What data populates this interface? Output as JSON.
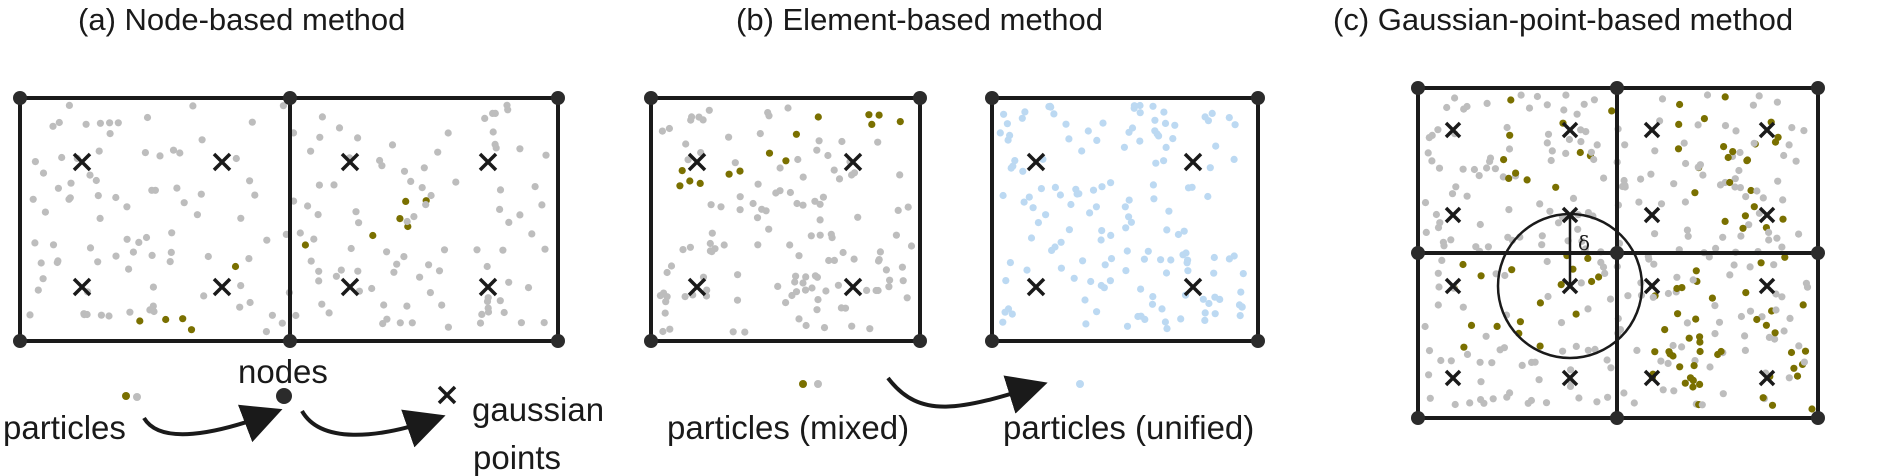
{
  "panels": {
    "a": {
      "title": "(a) Node-based method"
    },
    "b": {
      "title": "(b) Element-based method"
    },
    "c": {
      "title": "(c) Gaussian-point-based method"
    }
  },
  "labels": {
    "particles": "particles",
    "nodes": "nodes",
    "gaussian": "gaussian",
    "points": "points",
    "particles_mixed": "particles (mixed)",
    "particles_unified": "particles (unified)",
    "delta": "δ"
  },
  "colors": {
    "grey_particle": "#bdbdbd",
    "olive_particle": "#7a7000",
    "blue_particle": "#bcd9f2",
    "line": "#1a1a1a"
  },
  "icons": {
    "node": "filled-circle",
    "gaussian_point": "cross-x",
    "arrow": "curved-arrow"
  }
}
